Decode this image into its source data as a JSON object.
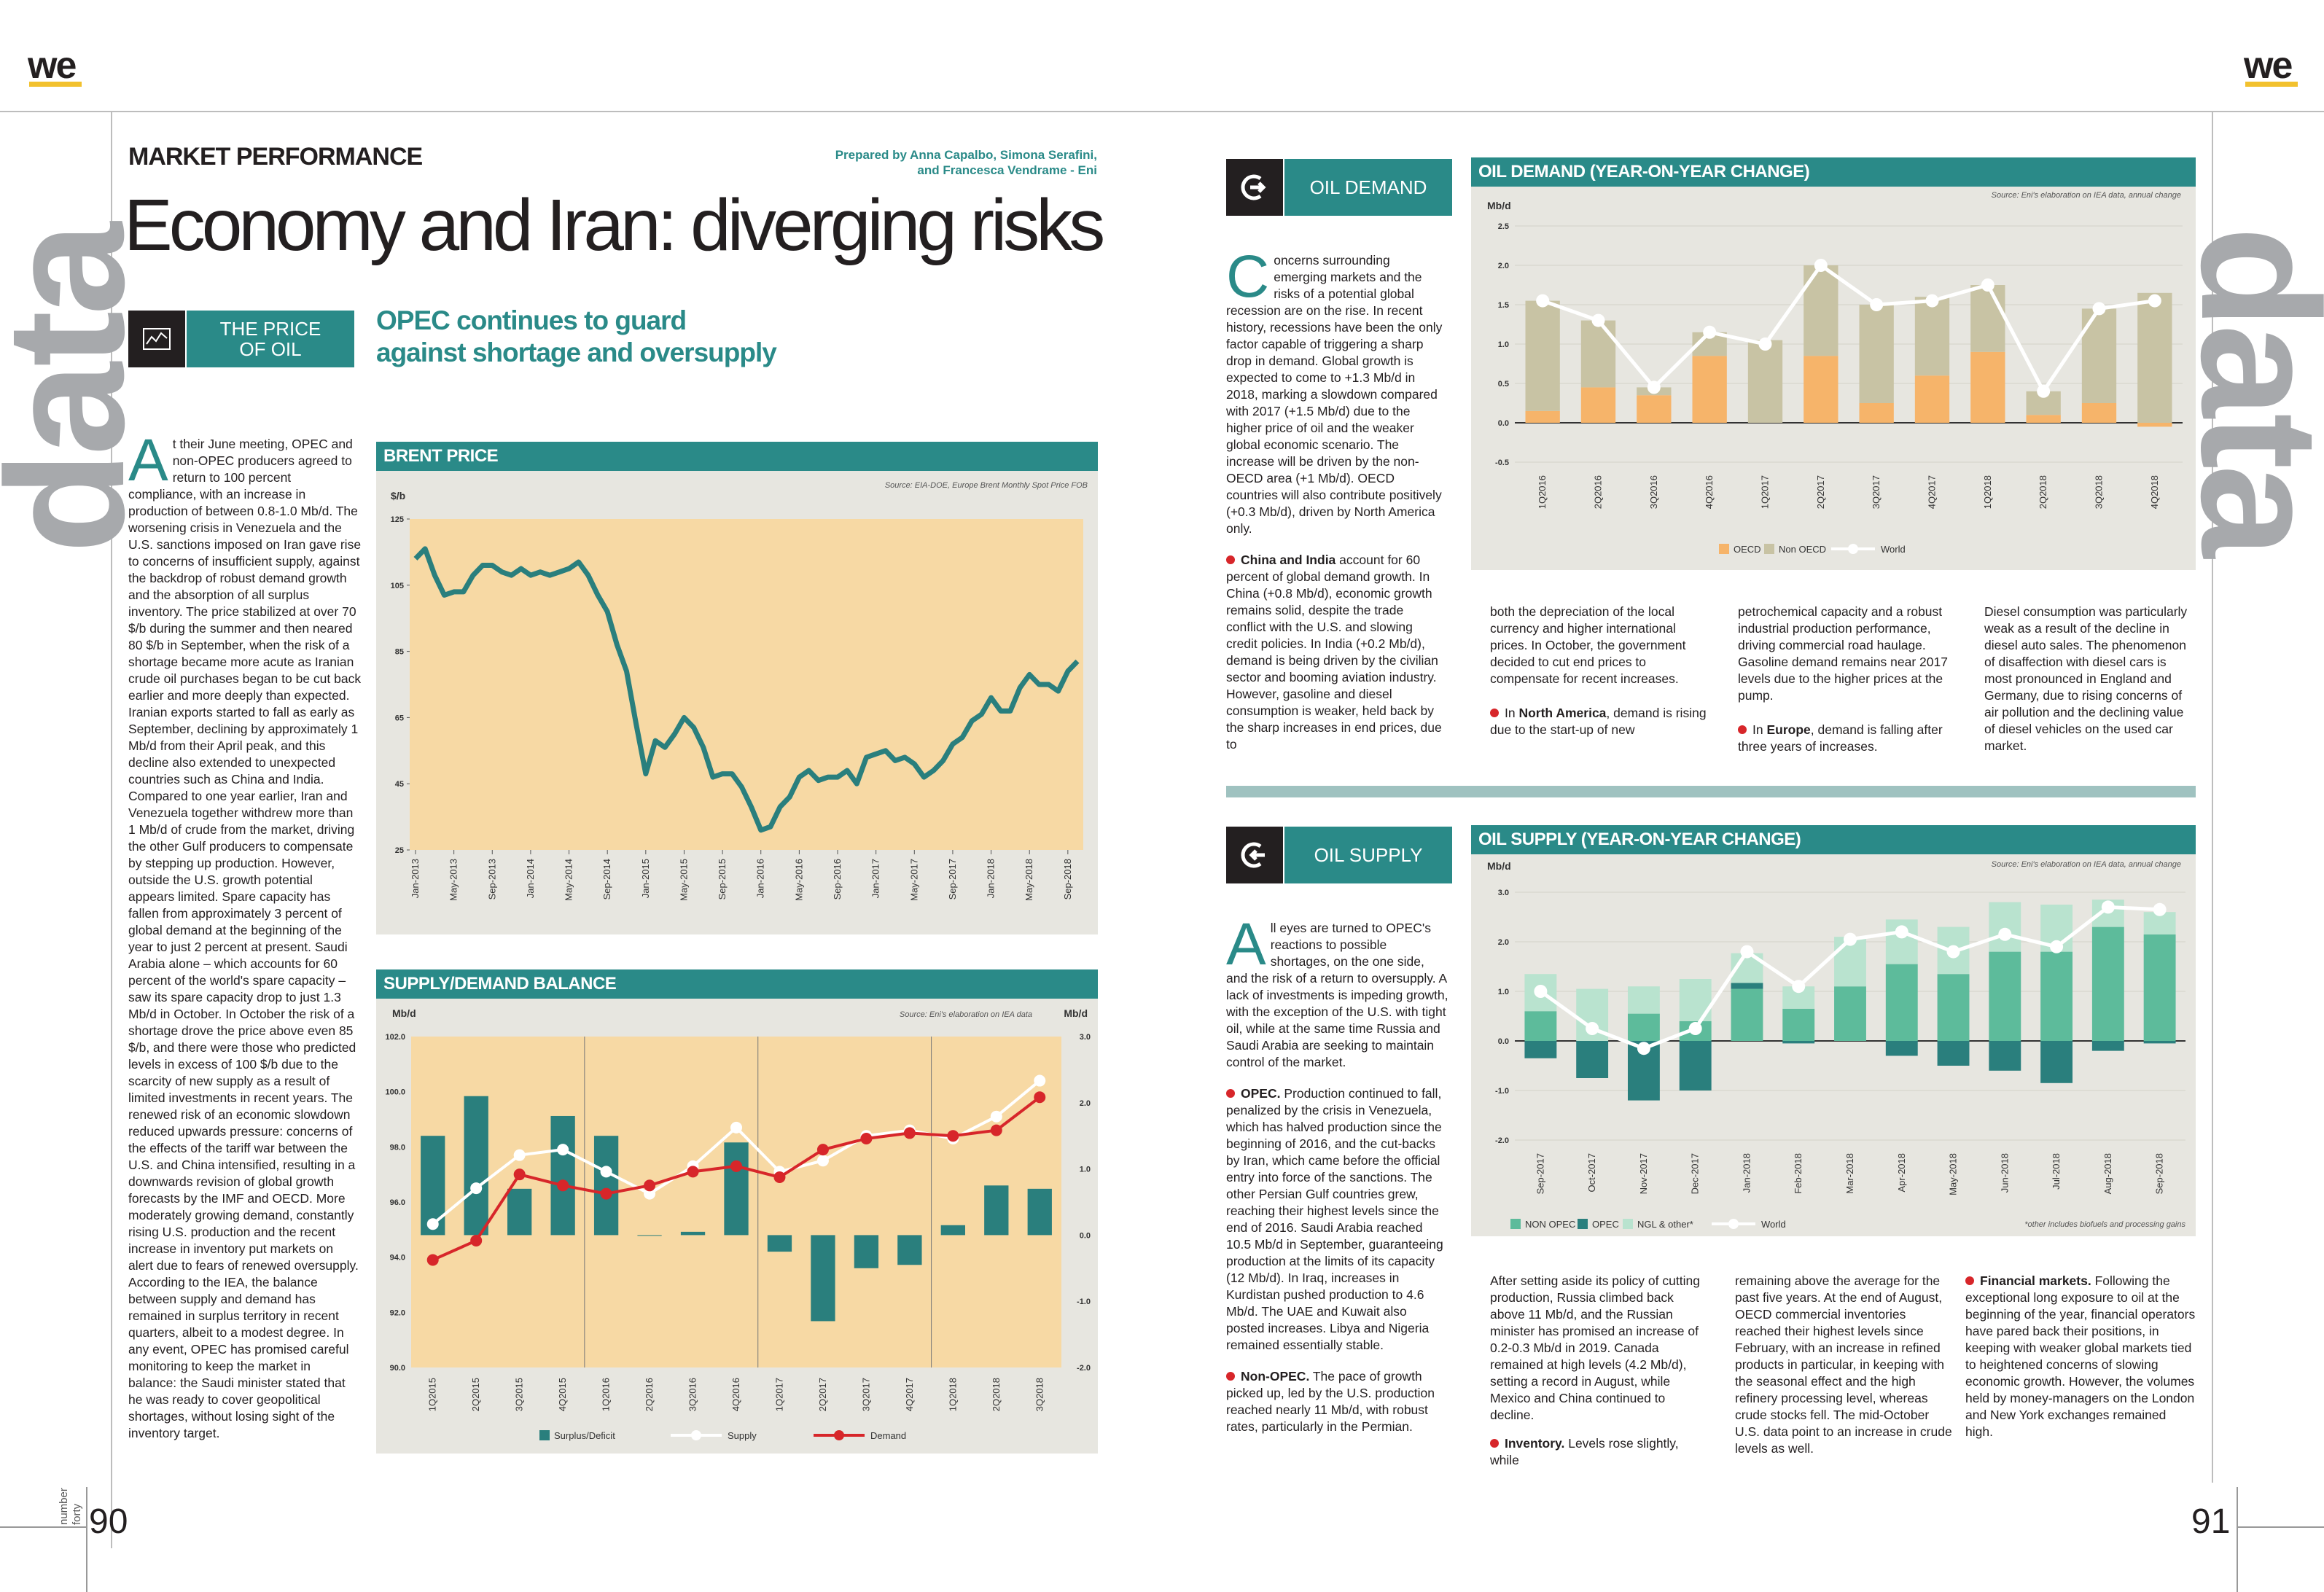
{
  "brand": {
    "logo": "we"
  },
  "left": {
    "vertical_word": "data",
    "kicker": "MARKET PERFORMANCE",
    "credits": [
      "Prepared by Anna Capalbo, Simona Serafini,",
      "and Francesca Vendrame - Eni"
    ],
    "title": "Economy and Iran: diverging risks",
    "section_label": [
      "THE PRICE",
      "OF OIL"
    ],
    "section_icon": "chart-icon",
    "subhead": [
      "OPEC continues to guard",
      "against shortage and oversupply"
    ],
    "dropcap": "A",
    "body_first": "t their June meeting, OPEC and non-OPEC producers agreed to return to 100 percent compliance, with an increase in production of between 0.8-1.0 Mb/d.",
    "body_rest": "The worsening crisis in Venezuela and the U.S. sanctions imposed on Iran gave rise to concerns of insufficient supply, against the backdrop of robust demand growth and the absorption of all surplus inventory. The price stabilized at over 70 $/b during the summer and then neared 80 $/b in September, when the risk of a shortage became more acute as Iranian crude oil purchases began to be cut back earlier and more deeply than expected. Iranian exports started to fall as early as September, declining by approximately 1 Mb/d from their April peak, and this decline also extended to unexpected countries such as China and India. Compared to one year earlier, Iran and Venezuela together withdrew more than 1 Mb/d of crude from the market, driving the other Gulf producers to compensate by stepping up production. However, outside the U.S. growth potential appears limited. Spare capacity has fallen from approximately 3 percent of global demand at the beginning of the year to just 2 percent at present. Saudi Arabia alone – which accounts for 60 percent of the world's spare capacity – saw its spare capacity drop to just 1.3 Mb/d in October. In October the risk of a shortage drove the price above even 85 $/b, and there were those who predicted levels in excess of 100 $/b due to the scarcity of new supply as a result of limited investments in recent years. The renewed risk of an economic slowdown reduced upwards pressure: concerns of the effects of the tariff war between the U.S. and China intensified, resulting in a downwards revision of global growth forecasts by the IMF and OECD. More moderately growing demand, constantly rising U.S. production and the recent increase in inventory put markets on alert due to fears of renewed oversupply. According to the IEA, the balance between supply and demand has remained in surplus territory in recent quarters, albeit to a modest degree. In any event, OPEC has promised careful monitoring to keep the market in balance: the Saudi minister stated that he was ready to cover geopolitical shortages, without losing sight of the inventory target.",
    "page_label": [
      "number",
      "forty"
    ],
    "page_number": "90"
  },
  "right": {
    "vertical_word": "data",
    "page_number": "91",
    "demand": {
      "section_label": "OIL DEMAND",
      "section_icon": "arrow-icon",
      "dropcap": "C",
      "body": "oncerns surrounding emerging markets and the risks of a potential global recession are on the rise. In recent history, recessions have been the only factor capable of triggering a sharp drop in demand. Global growth is expected to come to +1.3 Mb/d in 2018, marking a slowdown compared with 2017 (+1.5 Mb/d) due to the higher price of oil and the weaker global economic scenario. The increase will be driven by the non-OECD area (+1 Mb/d). OECD countries will also contribute positively (+0.3 Mb/d), driven by North America only.",
      "china_bold": "China and India",
      "china_text": " account for 60 percent of global demand growth. In China (+0.8 Mb/d), economic growth remains solid, despite the trade conflict with the U.S. and slowing credit policies. In India (+0.2 Mb/d), demand is being driven by the civilian sector and booming aviation industry. However, gasoline and diesel consumption is weaker, held back by the sharp increases in end prices, due to",
      "col2": "both the depreciation of the local currency and higher international prices. In October, the government decided to cut end prices to compensate for recent increases.",
      "na_bold": "North America",
      "na_pre": "In ",
      "na_text": ", demand is rising due to the start-up of new",
      "col3": "petrochemical capacity and a robust industrial production performance, driving commercial road haulage. Gasoline demand remains near 2017 levels due to the higher prices at the pump.",
      "eu_pre": "In ",
      "eu_bold": "Europe",
      "eu_text": ", demand is falling after three years of increases.",
      "col4": "Diesel consumption was particularly weak as a result of the decline in diesel auto sales. The phenomenon of disaffection with diesel cars is most pronounced in England and Germany, due to rising concerns of air pollution and the declining value of diesel vehicles on the used car market."
    },
    "supply": {
      "section_label": "OIL SUPPLY",
      "section_icon": "arrow-icon",
      "dropcap": "A",
      "body": "ll eyes are turned to OPEC's reactions to possible shortages, on the one side, and the risk of a return to oversupply. A lack of investments is impeding growth, with the exception of the U.S. with tight oil, while at the same time Russia and Saudi Arabia are seeking to maintain control of the market.",
      "opec_bold": "OPEC.",
      "opec_text": " Production continued to fall, penalized by the crisis in Venezuela, which has halved production since the beginning of 2016, and the cut-backs by Iran, which came before the official entry into force of the sanctions. The other Persian Gulf countries grew, reaching their highest levels since the end of 2016. Saudi Arabia reached 10.5 Mb/d in September, guaranteeing production at the limits of its capacity (12 Mb/d). In Iraq, increases in Kurdistan pushed production to 4.6 Mb/d. The UAE and Kuwait also posted increases. Libya and Nigeria remained essentially stable.",
      "nonopec_bold": "Non-OPEC.",
      "nonopec_text": " The pace of growth picked up, led by the U.S. production reached nearly 11 Mb/d, with robust rates, particularly in the Permian.",
      "col2": "After setting aside its policy of cutting production, Russia climbed back above 11 Mb/d, and the Russian minister has promised an increase of 0.2-0.3 Mb/d in 2019. Canada remained at high levels (4.2 Mb/d), setting a record in August, while Mexico and China continued to decline.",
      "inv_bold": "Inventory.",
      "inv_text": " Levels rose slightly, while",
      "col3": "remaining above the average for the past five years. At the end of August, OECD commercial inventories reached their highest levels since February, with an increase in refined products in particular, in keeping with the seasonal effect and the high refinery processing level, whereas crude stocks fell. The mid-October U.S. data point to an increase in crude levels as well.",
      "fin_bold": "Financial markets.",
      "fin_text": " Following the exceptional long exposure to oil at the beginning of the year, financial operators have pared back their positions, in keeping with weaker global markets tied to heightened concerns of slowing economic growth. However, the volumes held by money-managers on the London and New York exchanges remained high."
    }
  },
  "chart_data": [
    {
      "id": "brent",
      "type": "line",
      "title": "BRENT PRICE",
      "source": "Source: EIA-DOE, Europe Brent Monthly Spot Price FOB",
      "ylabel": "$/b",
      "ylim": [
        25,
        125
      ],
      "yticks": [
        25,
        45,
        65,
        85,
        105,
        125
      ],
      "x_tick_labels": [
        "Jan-2013",
        "May-2013",
        "Sep-2013",
        "Jan-2014",
        "May-2014",
        "Sep-2014",
        "Jan-2015",
        "May-2015",
        "Sep-2015",
        "Jan-2016",
        "May-2016",
        "Sep-2016",
        "Jan-2017",
        "May-2017",
        "Sep-2017",
        "Jan-2018",
        "May-2018",
        "Sep-2018"
      ],
      "color": "#2a7f7d",
      "values": [
        113,
        116,
        108,
        102,
        103,
        103,
        108,
        111,
        111,
        109,
        108,
        110,
        108,
        109,
        108,
        109,
        110,
        112,
        108,
        102,
        97,
        87,
        79,
        63,
        48,
        58,
        56,
        60,
        65,
        62,
        56,
        47,
        48,
        48,
        44,
        38,
        31,
        32,
        38,
        41,
        47,
        49,
        46,
        47,
        47,
        49,
        45,
        53,
        54,
        55,
        52,
        53,
        51,
        47,
        49,
        52,
        57,
        59,
        64,
        66,
        71,
        67,
        67,
        74,
        78,
        75,
        75,
        73,
        79,
        82
      ],
      "grid": false,
      "background": "#f7d9a4"
    },
    {
      "id": "balance",
      "type": "bar",
      "title": "SUPPLY/DEMAND BALANCE",
      "source": "Source: Eni's elaboration on IEA data",
      "ylabel_left": "Mb/d",
      "ylabel_right": "Mb/d",
      "ylim_left": [
        90,
        102
      ],
      "yticks_left": [
        "90.0",
        "92.0",
        "94.0",
        "96.0",
        "98.0",
        "100.0",
        "102.0"
      ],
      "ylim_right": [
        -2,
        3
      ],
      "yticks_right": [
        "-2.0",
        "-1.0",
        "0.0",
        "1.0",
        "2.0",
        "3.0"
      ],
      "categories": [
        "1Q2015",
        "2Q2015",
        "3Q2015",
        "4Q2015",
        "1Q2016",
        "2Q2016",
        "3Q2016",
        "4Q2016",
        "1Q2017",
        "2Q2017",
        "3Q2017",
        "4Q2017",
        "1Q2018",
        "2Q2018",
        "3Q2018"
      ],
      "series": [
        {
          "name": "Surplus/Deficit",
          "axis": "right",
          "kind": "bar",
          "color": "#2a7f7d",
          "values": [
            1.5,
            2.1,
            0.7,
            1.8,
            1.5,
            0.0,
            0.05,
            1.4,
            -0.25,
            -1.3,
            -0.5,
            -0.45,
            0.15,
            0.75,
            0.7
          ]
        },
        {
          "name": "Supply",
          "axis": "left",
          "kind": "line",
          "color": "#ffffff",
          "values": [
            95.2,
            96.5,
            97.7,
            97.9,
            97.1,
            96.3,
            97.3,
            98.7,
            97.1,
            97.5,
            98.4,
            98.6,
            98.3,
            99.1,
            100.4
          ]
        },
        {
          "name": "Demand",
          "axis": "left",
          "kind": "line",
          "color": "#d7262a",
          "values": [
            93.9,
            94.6,
            97.0,
            96.6,
            96.3,
            96.6,
            97.1,
            97.3,
            96.9,
            97.9,
            98.3,
            98.5,
            98.4,
            98.6,
            99.8
          ]
        }
      ],
      "background": "#f7d9a4"
    },
    {
      "id": "demand",
      "type": "bar",
      "title": "OIL DEMAND (YEAR-ON-YEAR CHANGE)",
      "source": "Source: Eni's elaboration on IEA data, annual change",
      "ylabel": "Mb/d",
      "ylim": [
        -0.5,
        2.5
      ],
      "yticks": [
        "-0.5",
        "0.0",
        "0.5",
        "1.0",
        "1.5",
        "2.0",
        "2.5"
      ],
      "categories": [
        "1Q2016",
        "2Q2016",
        "3Q2016",
        "4Q2016",
        "1Q2017",
        "2Q2017",
        "3Q2017",
        "4Q2017",
        "1Q2018",
        "2Q2018",
        "3Q2018",
        "4Q2018"
      ],
      "series": [
        {
          "name": "OECD",
          "kind": "bar",
          "color": "#f6b46a",
          "values": [
            0.15,
            0.45,
            0.35,
            0.85,
            0.0,
            0.85,
            0.25,
            0.6,
            0.9,
            0.1,
            0.25,
            -0.05
          ]
        },
        {
          "name": "Non OECD",
          "kind": "bar",
          "color": "#c8c3a4",
          "values": [
            1.4,
            0.85,
            0.1,
            0.3,
            1.05,
            1.15,
            1.25,
            1.0,
            0.85,
            0.3,
            1.2,
            1.65
          ]
        },
        {
          "name": "World",
          "kind": "line",
          "color": "#ffffff",
          "values": [
            1.55,
            1.3,
            0.45,
            1.15,
            1.0,
            2.0,
            1.5,
            1.55,
            1.75,
            0.4,
            1.45,
            1.55
          ]
        }
      ],
      "background": "#e7e6e0"
    },
    {
      "id": "supply",
      "type": "bar",
      "title": "OIL SUPPLY (YEAR-ON-YEAR CHANGE)",
      "source": "Source: Eni's elaboration on IEA data, annual change",
      "ylabel": "Mb/d",
      "ylim": [
        -2,
        3
      ],
      "yticks": [
        "-2.0",
        "-1.0",
        "0.0",
        "1.0",
        "2.0",
        "3.0"
      ],
      "note": "*other includes biofuels and processing gains",
      "categories": [
        "Sep-2017",
        "Oct-2017",
        "Nov-2017",
        "Dec-2017",
        "Jan-2018",
        "Feb-2018",
        "Mar-2018",
        "Apr-2018",
        "May-2018",
        "Jun-2018",
        "Jul-2018",
        "Aug-2018",
        "Sep-2018"
      ],
      "series": [
        {
          "name": "NON OPEC",
          "kind": "bar",
          "color": "#5dbb9b",
          "values": [
            0.6,
            0.0,
            0.55,
            0.4,
            1.05,
            0.65,
            1.1,
            1.55,
            1.35,
            1.8,
            1.8,
            2.3,
            2.15
          ]
        },
        {
          "name": "OPEC",
          "kind": "bar",
          "color": "#2a7f7d",
          "values": [
            -0.35,
            -0.75,
            -1.2,
            -1.0,
            0.12,
            -0.05,
            0.0,
            -0.3,
            -0.5,
            -0.6,
            -0.85,
            -0.2,
            -0.05
          ]
        },
        {
          "name": "NGL & other*",
          "kind": "bar",
          "color": "#b9e3cf",
          "values": [
            0.75,
            1.05,
            0.55,
            0.85,
            0.6,
            0.45,
            1.0,
            0.9,
            0.95,
            1.0,
            0.95,
            0.55,
            0.45
          ]
        },
        {
          "name": "World",
          "kind": "line",
          "color": "#ffffff",
          "values": [
            1.0,
            0.25,
            -0.15,
            0.25,
            1.8,
            1.1,
            2.05,
            2.2,
            1.8,
            2.15,
            1.9,
            2.7,
            2.65
          ]
        }
      ],
      "background": "#e7e6e0"
    }
  ]
}
